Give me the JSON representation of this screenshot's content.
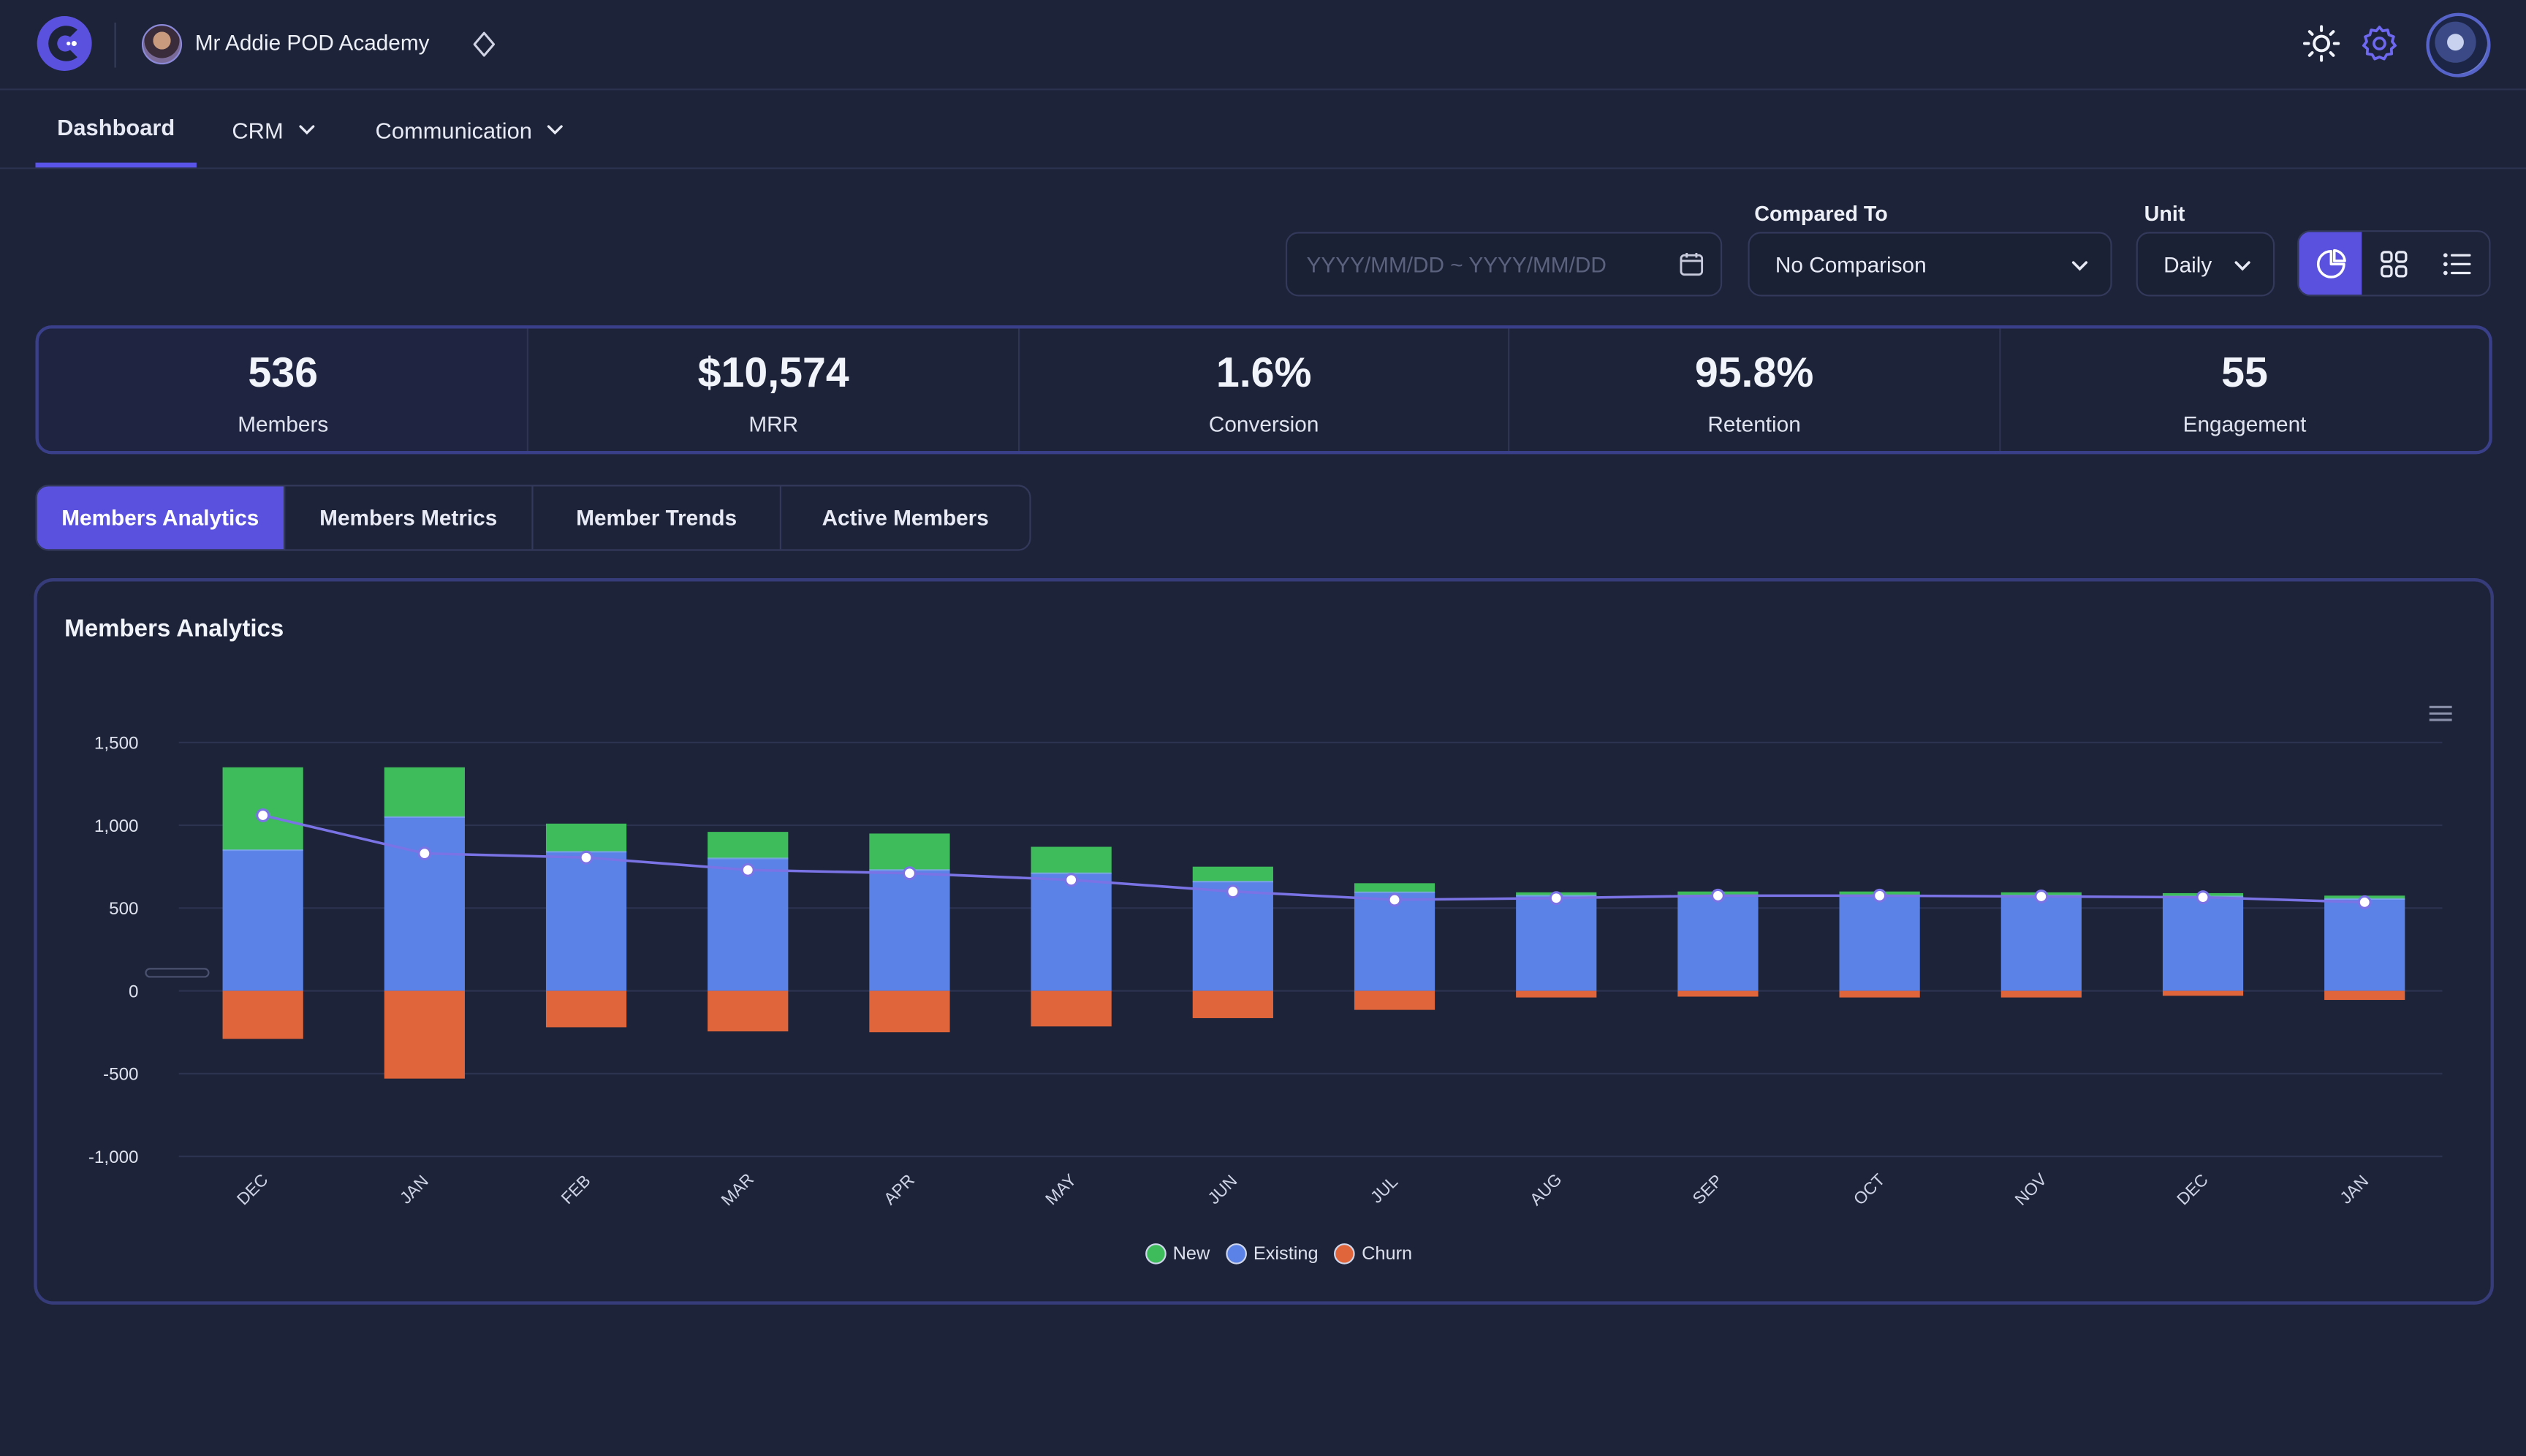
{
  "app": {
    "org_name": "Mr Addie POD Academy"
  },
  "nav": {
    "items": [
      {
        "label": "Dashboard",
        "active": true,
        "has_menu": false
      },
      {
        "label": "CRM",
        "active": false,
        "has_menu": true
      },
      {
        "label": "Communication",
        "active": false,
        "has_menu": true
      }
    ]
  },
  "filters": {
    "date_range_placeholder": "YYYY/MM/DD ~ YYYY/MM/DD",
    "compared_to_label": "Compared To",
    "compared_to_value": "No Comparison",
    "unit_label": "Unit",
    "unit_value": "Daily",
    "view_modes": [
      "pie-chart-icon",
      "grid-icon",
      "list-icon"
    ],
    "active_view": "pie-chart-icon"
  },
  "kpis": [
    {
      "value": "536",
      "label": "Members"
    },
    {
      "value": "$10,574",
      "label": "MRR"
    },
    {
      "value": "1.6%",
      "label": "Conversion"
    },
    {
      "value": "95.8%",
      "label": "Retention"
    },
    {
      "value": "55",
      "label": "Engagement"
    }
  ],
  "tabs": [
    {
      "label": "Members Analytics",
      "active": true
    },
    {
      "label": "Members Metrics",
      "active": false
    },
    {
      "label": "Member Trends",
      "active": false
    },
    {
      "label": "Active Members",
      "active": false
    }
  ],
  "card": {
    "title": "Members Analytics"
  },
  "colors": {
    "accent": "#5a52df",
    "new": "#3ebc5b",
    "existing": "#5b82e6",
    "churn": "#e0653a",
    "line": "#7a73e6"
  },
  "chart_data": {
    "type": "bar",
    "stacked": true,
    "categories": [
      "DEC",
      "JAN",
      "FEB",
      "MAR",
      "APR",
      "MAY",
      "JUN",
      "JUL",
      "AUG",
      "SEP",
      "OCT",
      "NOV",
      "DEC",
      "JAN"
    ],
    "series": [
      {
        "name": "New",
        "values": [
          500,
          300,
          170,
          160,
          220,
          160,
          90,
          55,
          20,
          25,
          25,
          20,
          20,
          20
        ]
      },
      {
        "name": "Existing",
        "values": [
          850,
          1050,
          840,
          800,
          730,
          710,
          660,
          595,
          575,
          575,
          575,
          575,
          570,
          555
        ]
      },
      {
        "name": "Churn",
        "values": [
          -290,
          -530,
          -220,
          -245,
          -250,
          -215,
          -165,
          -115,
          -40,
          -35,
          -40,
          -40,
          -30,
          -55
        ]
      }
    ],
    "line": {
      "values": [
        1060,
        830,
        805,
        730,
        710,
        670,
        600,
        550,
        560,
        575,
        575,
        570,
        565,
        535
      ]
    },
    "yticks": [
      "1,500",
      "1,000",
      "500",
      "0",
      "-500",
      "-1,000"
    ],
    "ylim": [
      -1000,
      1500
    ],
    "grid": true,
    "legend_position": "bottom"
  }
}
